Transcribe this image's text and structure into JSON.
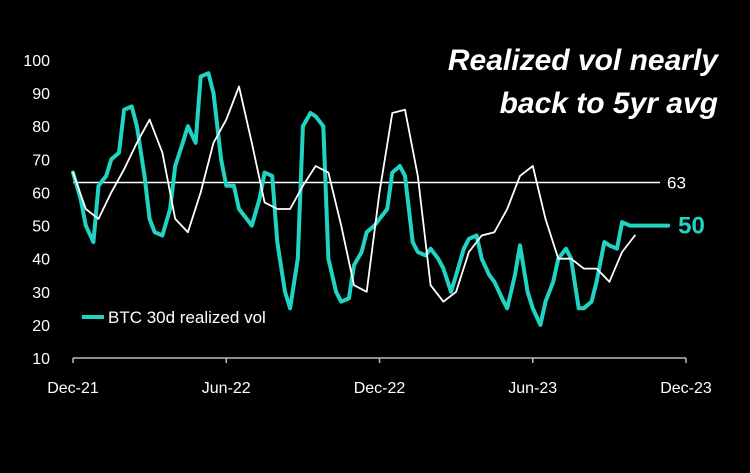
{
  "chart_data": {
    "type": "line",
    "title_lines": [
      "Realized vol nearly",
      "back to 5yr avg"
    ],
    "xlabel": "",
    "ylabel": "",
    "ylim": [
      10,
      100
    ],
    "yticks": [
      10,
      20,
      30,
      40,
      50,
      60,
      70,
      80,
      90,
      100
    ],
    "xtick_labels": [
      "Dec-21",
      "Jun-22",
      "Dec-22",
      "Jun-23",
      "Dec-23"
    ],
    "xtick_months": [
      0,
      6,
      12,
      18,
      24
    ],
    "grid": false,
    "legend_position": "bottom-left",
    "colors": {
      "series": "#20d3c2",
      "smooth": "#ffffff",
      "reference": "#ffffff",
      "axis": "#bbbbbb"
    },
    "reference_line": {
      "value": 63,
      "label": "63"
    },
    "last_value_label": "50",
    "series": [
      {
        "name": "BTC 30d realized vol",
        "x": [
          0.0,
          0.3,
          0.5,
          0.8,
          1.0,
          1.3,
          1.5,
          1.8,
          2.0,
          2.3,
          2.5,
          2.8,
          3.0,
          3.2,
          3.5,
          3.8,
          4.0,
          4.3,
          4.5,
          4.8,
          5.0,
          5.3,
          5.5,
          5.8,
          6.0,
          6.3,
          6.5,
          6.8,
          7.0,
          7.3,
          7.5,
          7.8,
          8.0,
          8.3,
          8.5,
          8.8,
          9.0,
          9.3,
          9.5,
          9.8,
          10.0,
          10.3,
          10.5,
          10.8,
          11.0,
          11.3,
          11.5,
          11.8,
          12.0,
          12.3,
          12.5,
          12.8,
          13.0,
          13.3,
          13.5,
          13.8,
          14.0,
          14.3,
          14.5,
          14.8,
          15.0,
          15.3,
          15.5,
          15.8,
          16.0,
          16.3,
          16.5,
          16.8,
          17.0,
          17.3,
          17.5,
          17.8,
          18.0,
          18.3,
          18.5,
          18.8,
          19.0,
          19.3,
          19.5,
          19.8,
          20.0,
          20.3,
          20.5,
          20.8,
          21.0,
          21.3,
          21.5,
          21.8,
          22.0,
          22.3,
          22.5,
          22.8,
          23.0,
          23.3
        ],
        "values": [
          66,
          58,
          50,
          45,
          62,
          65,
          70,
          72,
          85,
          86,
          80,
          65,
          52,
          48,
          47,
          55,
          68,
          75,
          80,
          75,
          95,
          96,
          90,
          70,
          62,
          62,
          55,
          52,
          50,
          58,
          66,
          65,
          45,
          30,
          25,
          40,
          80,
          84,
          83,
          80,
          40,
          30,
          27,
          28,
          38,
          42,
          48,
          50,
          52,
          55,
          66,
          68,
          65,
          45,
          42,
          41,
          43,
          40,
          37,
          30,
          35,
          43,
          46,
          47,
          40,
          35,
          33,
          28,
          25,
          35,
          44,
          30,
          25,
          20,
          27,
          33,
          40,
          43,
          40,
          25,
          25,
          27,
          33,
          45,
          44,
          43,
          51,
          50,
          50,
          50,
          50,
          50,
          50,
          50
        ]
      },
      {
        "name": "",
        "x": [
          0.0,
          0.5,
          1.0,
          1.5,
          2.0,
          2.5,
          3.0,
          3.5,
          4.0,
          4.5,
          5.0,
          5.5,
          6.0,
          6.5,
          7.0,
          7.5,
          8.0,
          8.5,
          9.0,
          9.5,
          10.0,
          10.5,
          11.0,
          11.5,
          12.0,
          12.5,
          13.0,
          13.5,
          14.0,
          14.5,
          15.0,
          15.5,
          16.0,
          16.5,
          17.0,
          17.5,
          18.0,
          18.5,
          19.0,
          19.5,
          20.0,
          20.5,
          21.0,
          21.5,
          22.0
        ],
        "values": [
          66,
          55,
          52,
          60,
          67,
          75,
          82,
          72,
          52,
          48,
          60,
          75,
          82,
          92,
          75,
          57,
          55,
          55,
          62,
          68,
          66,
          50,
          32,
          30,
          60,
          84,
          85,
          65,
          32,
          27,
          30,
          42,
          47,
          48,
          55,
          65,
          68,
          52,
          40,
          40,
          37,
          37,
          33,
          42,
          47
        ]
      }
    ]
  }
}
